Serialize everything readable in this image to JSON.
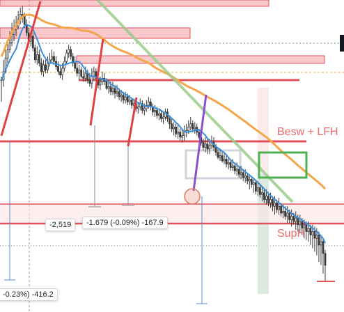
{
  "chart_data": {
    "type": "candlestick",
    "title": "",
    "xlabel": "",
    "ylabel": "",
    "grid": false,
    "legend": "none",
    "candles": [
      [
        20,
        0,
        24,
        -6,
        20
      ],
      [
        20,
        36,
        44,
        12,
        30
      ],
      [
        30,
        50,
        56,
        28,
        46
      ],
      [
        46,
        60,
        66,
        40,
        56
      ],
      [
        56,
        70,
        78,
        52,
        64
      ],
      [
        64,
        80,
        88,
        60,
        74
      ],
      [
        74,
        84,
        92,
        66,
        80
      ],
      [
        80,
        90,
        96,
        72,
        84
      ],
      [
        84,
        96,
        102,
        80,
        92
      ],
      [
        92,
        100,
        106,
        86,
        98
      ],
      [
        98,
        94,
        108,
        88,
        96
      ],
      [
        96,
        90,
        100,
        82,
        86
      ],
      [
        86,
        80,
        92,
        72,
        76
      ],
      [
        76,
        70,
        82,
        62,
        66
      ],
      [
        66,
        74,
        78,
        60,
        72
      ],
      [
        72,
        64,
        76,
        54,
        58
      ],
      [
        58,
        50,
        62,
        40,
        44
      ],
      [
        44,
        52,
        60,
        38,
        50
      ],
      [
        50,
        42,
        56,
        36,
        40
      ],
      [
        40,
        34,
        46,
        26,
        30
      ],
      [
        30,
        40,
        44,
        24,
        38
      ],
      [
        38,
        36,
        44,
        28,
        32
      ],
      [
        32,
        42,
        48,
        28,
        40
      ],
      [
        40,
        46,
        52,
        36,
        44
      ],
      [
        44,
        50,
        56,
        40,
        48
      ],
      [
        48,
        44,
        54,
        38,
        42
      ],
      [
        42,
        40,
        48,
        32,
        36
      ],
      [
        36,
        32,
        42,
        26,
        30
      ],
      [
        30,
        34,
        38,
        22,
        26
      ],
      [
        26,
        36,
        40,
        20,
        34
      ],
      [
        34,
        44,
        48,
        30,
        42
      ],
      [
        42,
        48,
        56,
        38,
        52
      ],
      [
        52,
        58,
        62,
        46,
        56
      ],
      [
        56,
        54,
        60,
        44,
        48
      ],
      [
        48,
        44,
        52,
        36,
        40
      ],
      [
        40,
        42,
        48,
        30,
        34
      ],
      [
        34,
        30,
        40,
        24,
        28
      ],
      [
        28,
        34,
        38,
        20,
        32
      ],
      [
        32,
        28,
        36,
        22,
        24
      ],
      [
        24,
        26,
        32,
        18,
        22
      ],
      [
        22,
        30,
        36,
        18,
        28
      ],
      [
        28,
        24,
        32,
        16,
        20
      ],
      [
        20,
        22,
        28,
        12,
        16
      ],
      [
        16,
        26,
        34,
        10,
        24
      ],
      [
        24,
        32,
        36,
        20,
        30
      ],
      [
        30,
        26,
        34,
        18,
        22
      ],
      [
        22,
        18,
        26,
        10,
        14
      ],
      [
        14,
        20,
        24,
        8,
        18
      ],
      [
        18,
        24,
        30,
        14,
        22
      ],
      [
        22,
        20,
        28,
        14,
        18
      ],
      [
        18,
        14,
        22,
        8,
        10
      ],
      [
        10,
        16,
        20,
        4,
        12
      ],
      [
        12,
        10,
        18,
        2,
        6
      ],
      [
        6,
        12,
        18,
        2,
        10
      ],
      [
        10,
        6,
        14,
        -2,
        4
      ],
      [
        4,
        8,
        14,
        0,
        6
      ],
      [
        6,
        2,
        10,
        -4,
        0
      ],
      [
        0,
        4,
        8,
        -6,
        2
      ],
      [
        2,
        -2,
        6,
        -8,
        -4
      ],
      [
        -4,
        2,
        6,
        -8,
        0
      ],
      [
        0,
        -4,
        4,
        -10,
        -6
      ],
      [
        -6,
        -2,
        2,
        -10,
        -4
      ],
      [
        -4,
        -8,
        -2,
        -14,
        -10
      ],
      [
        -10,
        -6,
        -2,
        -14,
        -8
      ],
      [
        -8,
        -12,
        -6,
        -18,
        -14
      ],
      [
        -14,
        -10,
        -6,
        -20,
        -12
      ],
      [
        -12,
        -6,
        -2,
        -16,
        -8
      ],
      [
        -8,
        -14,
        -4,
        -20,
        -16
      ],
      [
        -16,
        -12,
        -8,
        -22,
        -14
      ],
      [
        -14,
        -8,
        -4,
        -18,
        -10
      ],
      [
        -10,
        -4,
        0,
        -14,
        -6
      ],
      [
        -6,
        -10,
        -2,
        -16,
        -12
      ],
      [
        -12,
        -16,
        -8,
        -22,
        -18
      ],
      [
        -18,
        -14,
        -10,
        -24,
        -16
      ],
      [
        -16,
        -20,
        -12,
        -26,
        -22
      ],
      [
        -22,
        -18,
        -14,
        -28,
        -20
      ],
      [
        -20,
        -24,
        -16,
        -30,
        -26
      ],
      [
        -26,
        -22,
        -18,
        -32,
        -24
      ],
      [
        -24,
        -20,
        -14,
        -28,
        -18
      ],
      [
        -18,
        -24,
        -14,
        -30,
        -26
      ],
      [
        -26,
        -30,
        -22,
        -38,
        -32
      ],
      [
        -32,
        -36,
        -26,
        -42,
        -38
      ],
      [
        -38,
        -34,
        -30,
        -46,
        -36
      ],
      [
        -36,
        -42,
        -32,
        -48,
        -44
      ],
      [
        -44,
        -40,
        -34,
        -50,
        -42
      ],
      [
        -42,
        -46,
        -38,
        -52,
        -48
      ],
      [
        -48,
        -44,
        -38,
        -54,
        -46
      ],
      [
        -46,
        -40,
        -34,
        -52,
        -42
      ],
      [
        -42,
        -38,
        -32,
        -48,
        -40
      ],
      [
        -40,
        -34,
        -28,
        -44,
        -36
      ],
      [
        -36,
        -30,
        -24,
        -40,
        -32
      ],
      [
        -32,
        -36,
        -28,
        -42,
        -38
      ],
      [
        -38,
        -34,
        -30,
        -44,
        -36
      ],
      [
        -36,
        -40,
        -32,
        -46,
        -42
      ],
      [
        -42,
        -46,
        -38,
        -50,
        -48
      ],
      [
        -48,
        -52,
        -44,
        -58,
        -54
      ],
      [
        -54,
        -58,
        -50,
        -64,
        -60
      ],
      [
        -60,
        -54,
        -48,
        -66,
        -56
      ],
      [
        -56,
        -60,
        -50,
        -68,
        -62
      ],
      [
        -62,
        -56,
        -50,
        -68,
        -58
      ],
      [
        -58,
        -52,
        -46,
        -62,
        -54
      ],
      [
        -54,
        -58,
        -48,
        -64,
        -60
      ],
      [
        -60,
        -64,
        -56,
        -70,
        -66
      ],
      [
        -66,
        -70,
        -60,
        -74,
        -72
      ],
      [
        -72,
        -68,
        -62,
        -76,
        -70
      ],
      [
        -70,
        -74,
        -64,
        -78,
        -76
      ],
      [
        -76,
        -72,
        -66,
        -80,
        -74
      ],
      [
        -74,
        -78,
        -70,
        -84,
        -80
      ],
      [
        -80,
        -76,
        -72,
        -86,
        -78
      ],
      [
        -78,
        -82,
        -74,
        -88,
        -84
      ],
      [
        -84,
        -80,
        -74,
        -88,
        -82
      ],
      [
        -82,
        -86,
        -78,
        -92,
        -88
      ],
      [
        -88,
        -84,
        -78,
        -94,
        -86
      ],
      [
        -86,
        -90,
        -82,
        -96,
        -92
      ],
      [
        -92,
        -88,
        -82,
        -98,
        -90
      ],
      [
        -90,
        -94,
        -86,
        -100,
        -96
      ],
      [
        -96,
        -92,
        -86,
        -102,
        -94
      ],
      [
        -94,
        -98,
        -90,
        -104,
        -100
      ],
      [
        -100,
        -96,
        -92,
        -110,
        -98
      ],
      [
        -98,
        -102,
        -94,
        -108,
        -104
      ],
      [
        -104,
        -100,
        -96,
        -114,
        -102
      ],
      [
        -102,
        -110,
        -100,
        -116,
        -112
      ],
      [
        -112,
        -106,
        -100,
        -118,
        -108
      ],
      [
        -108,
        -114,
        -104,
        -120,
        -116
      ],
      [
        -116,
        -112,
        -106,
        -124,
        -114
      ],
      [
        -114,
        -120,
        -110,
        -126,
        -122
      ],
      [
        -122,
        -116,
        -110,
        -128,
        -118
      ],
      [
        -118,
        -124,
        -114,
        -130,
        -126
      ],
      [
        -126,
        -120,
        -114,
        -132,
        -122
      ],
      [
        -122,
        -128,
        -118,
        -136,
        -130
      ],
      [
        -130,
        -124,
        -118,
        -140,
        -126
      ],
      [
        -126,
        -132,
        -122,
        -138,
        -134
      ],
      [
        -134,
        -128,
        -120,
        -140,
        -130
      ],
      [
        -130,
        -136,
        -126,
        -142,
        -138
      ],
      [
        -138,
        -134,
        -128,
        -144,
        -136
      ],
      [
        -136,
        -140,
        -130,
        -146,
        -142
      ],
      [
        -142,
        -136,
        -130,
        -150,
        -138
      ],
      [
        -138,
        -144,
        -134,
        -150,
        -146
      ],
      [
        -146,
        -140,
        -134,
        -154,
        -142
      ],
      [
        -142,
        -146,
        -138,
        -152,
        -148
      ],
      [
        -148,
        -142,
        -136,
        -158,
        -144
      ],
      [
        -144,
        -150,
        -140,
        -160,
        -152
      ],
      [
        -152,
        -146,
        -140,
        -162,
        -148
      ],
      [
        -148,
        -154,
        -144,
        -164,
        -156
      ],
      [
        -156,
        -150,
        -146,
        -168,
        -152
      ],
      [
        -152,
        -158,
        -148,
        -170,
        -160
      ],
      [
        -160,
        -154,
        -148,
        -172,
        -156
      ],
      [
        -156,
        -162,
        -152,
        -176,
        -164
      ],
      [
        -164,
        -158,
        -152,
        -180,
        -160
      ],
      [
        -160,
        -166,
        -154,
        -184,
        -168
      ],
      [
        -168,
        -162,
        -156,
        -188,
        -164
      ],
      [
        -164,
        -172,
        -160,
        -196,
        -176
      ],
      [
        -176,
        -170,
        -164,
        -200,
        -172
      ],
      [
        -172,
        -180,
        -168,
        -210,
        -186
      ],
      [
        -186,
        -194,
        -182,
        -220,
        -200
      ]
    ],
    "annotations": {
      "zone_label_1": "Besw + LFH",
      "zone_label_2": "SupH",
      "measure_1": "-2,519",
      "measure_2": "-1.679 (-0.09%) -167.9",
      "measure_3": "-0.23%) -416.2"
    }
  },
  "colors": {
    "background": "#ffffff",
    "up_candle": "#3a3a3a",
    "down_candle": "#3a3a3a",
    "ma_fast": "#3b8fd9",
    "ma_slow": "#f5a54a",
    "trend_green": "#9ccc8e",
    "resistance": "#e0505a",
    "zone_fill": "#f8c8cc",
    "channel_green": "#4caf50",
    "impulse_red": "#e04040",
    "impulse_purple": "#8a4fcf",
    "measure_line": "#5b8ad8",
    "dotted_orange": "#e8b040",
    "circle": "#e07a5f"
  }
}
